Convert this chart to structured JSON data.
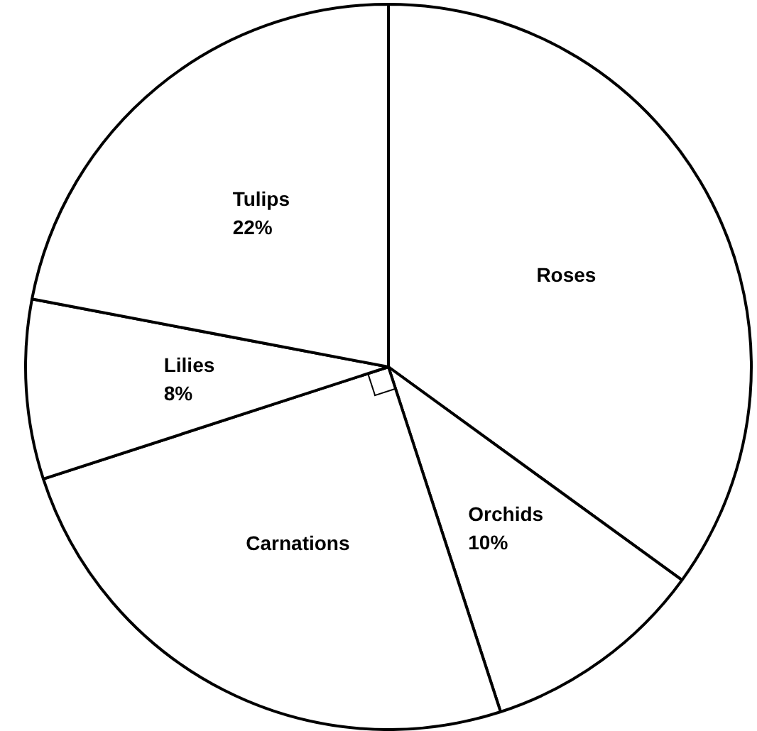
{
  "chart_data": {
    "type": "pie",
    "categories": [
      "Roses",
      "Orchids",
      "Carnations",
      "Lilies",
      "Tulips"
    ],
    "values": [
      35,
      10,
      25,
      8,
      22
    ],
    "colors": [
      "#ffffff",
      "#ffffff",
      "#ffffff",
      "#ffffff",
      "#ffffff"
    ],
    "value_labels": [
      null,
      "10%",
      null,
      "8%",
      "22%"
    ],
    "legend": false
  }
}
